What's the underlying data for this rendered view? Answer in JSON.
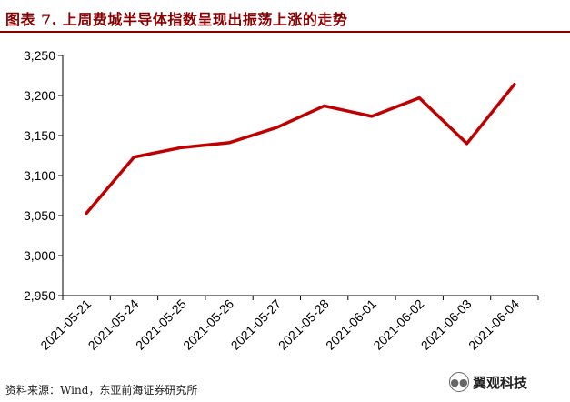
{
  "title": "图表 7.   上周费城半导体指数呈现出振荡上涨的走势",
  "source": "资料来源：Wind，东亚前海证券研究所",
  "watermark": {
    "text": "翼观科技",
    "icon": "wechat-logo-icon"
  },
  "colors": {
    "line": "#c00000",
    "title": "#8b0000",
    "axis": "#000000"
  },
  "chart_data": {
    "type": "line",
    "categories": [
      "2021-05-21",
      "2021-05-24",
      "2021-05-25",
      "2021-05-26",
      "2021-05-27",
      "2021-05-28",
      "2021-06-01",
      "2021-06-02",
      "2021-06-03",
      "2021-06-04"
    ],
    "values": [
      3053,
      3123,
      3135,
      3141,
      3160,
      3187,
      3174,
      3197,
      3140,
      3214
    ],
    "ylim": [
      2950,
      3250
    ],
    "yticks": [
      2950,
      3000,
      3050,
      3100,
      3150,
      3200,
      3250
    ],
    "ytick_labels": [
      "2,950",
      "3,000",
      "3,050",
      "3,100",
      "3,150",
      "3,200",
      "3,250"
    ],
    "title": "",
    "xlabel": "",
    "ylabel": "",
    "grid": false,
    "legend": "none"
  }
}
